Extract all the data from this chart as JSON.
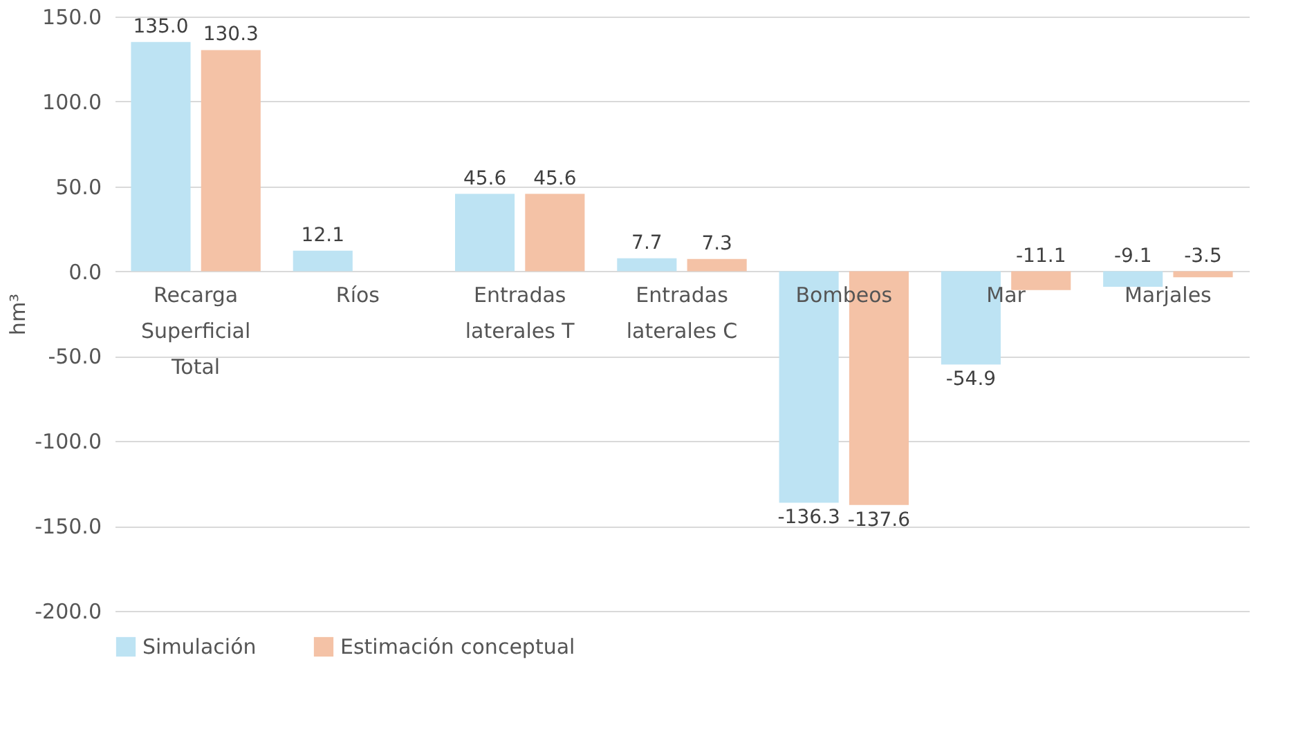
{
  "chart_data": {
    "type": "bar",
    "categories": [
      "Recarga Superficial Total",
      "Ríos",
      "Entradas laterales T",
      "Entradas laterales C",
      "Bombeos",
      "Mar",
      "Marjales"
    ],
    "series": [
      {
        "name": "Simulación",
        "color": "#bde3f3",
        "values": [
          135.0,
          12.1,
          45.6,
          7.7,
          -136.3,
          -54.9,
          -9.1
        ],
        "value_labels": [
          "135.0",
          "12.1",
          "45.6",
          "7.7",
          "-136.3",
          "-54.9",
          "-9.1"
        ]
      },
      {
        "name": "Estimación conceptual",
        "color": "#f4c2a6",
        "values": [
          130.3,
          null,
          45.6,
          7.3,
          -137.6,
          -11.1,
          -3.5
        ],
        "value_labels": [
          "130.3",
          null,
          "45.6",
          "7.3",
          "-137.6",
          "-11.1",
          "-3.5"
        ]
      }
    ],
    "ylabel": "hm³",
    "ylim": [
      -200,
      150
    ],
    "yticks": [
      {
        "value": -200,
        "label": "-200.0"
      },
      {
        "value": -150,
        "label": "-150.0"
      },
      {
        "value": -100,
        "label": "-100.0"
      },
      {
        "value": -50,
        "label": "-50.0"
      },
      {
        "value": 0,
        "label": "0.0"
      },
      {
        "value": 50,
        "label": "50.0"
      },
      {
        "value": 100,
        "label": "100.0"
      },
      {
        "value": 150,
        "label": "150.0"
      }
    ],
    "grid": "y",
    "legend": "bottom"
  }
}
